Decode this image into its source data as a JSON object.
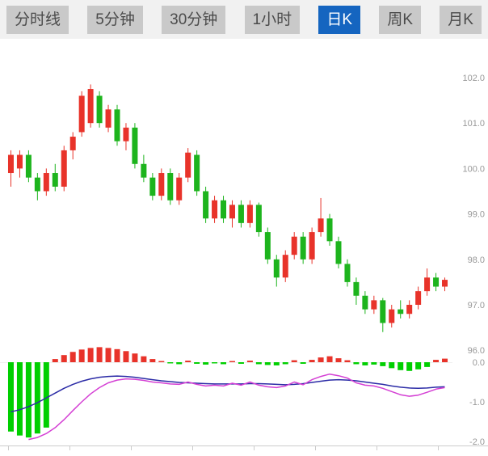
{
  "tabs": [
    {
      "label": "分时线",
      "active": false
    },
    {
      "label": "5分钟",
      "active": false
    },
    {
      "label": "30分钟",
      "active": false
    },
    {
      "label": "1小时",
      "active": false
    },
    {
      "label": "日K",
      "active": true
    },
    {
      "label": "周K",
      "active": false
    },
    {
      "label": "月K",
      "active": false
    }
  ],
  "colors": {
    "up": "#e8332a",
    "down": "#1db41d",
    "hist_up": "#e8332a",
    "hist_down": "#00cf00",
    "dif_line": "#d43fd4",
    "dea_line": "#2b2ba6",
    "axis_text": "#999999",
    "tab_active_bg": "#1565c0",
    "tab_bg": "#c9c9c9",
    "baseline": "#cccccc"
  },
  "chart_data": {
    "type": "candlestick",
    "title": "",
    "price_axis": {
      "ticks": [
        102.0,
        101.0,
        100.0,
        99.0,
        98.0,
        97.0,
        96.0
      ],
      "labels": [
        "102.0",
        "101.0",
        "100.0",
        "99.0",
        "98.0",
        "97.0",
        "96.0"
      ],
      "range": [
        96.0,
        102.0
      ]
    },
    "macd_axis": {
      "ticks": [
        0.0,
        -1.0,
        -2.0
      ],
      "labels": [
        "0.0",
        "-1.0",
        "-2.0"
      ],
      "range": [
        -2.0,
        0.5
      ]
    },
    "candles": [
      [
        99.9,
        100.4,
        99.6,
        100.3
      ],
      [
        100.0,
        100.4,
        99.8,
        100.3
      ],
      [
        100.3,
        100.4,
        99.7,
        99.8
      ],
      [
        99.8,
        99.9,
        99.3,
        99.5
      ],
      [
        99.5,
        100.0,
        99.4,
        99.9
      ],
      [
        99.9,
        100.1,
        99.5,
        99.6
      ],
      [
        99.6,
        100.5,
        99.5,
        100.4
      ],
      [
        100.4,
        100.8,
        100.2,
        100.7
      ],
      [
        100.8,
        101.7,
        100.7,
        101.6
      ],
      [
        101.0,
        101.85,
        100.9,
        101.75
      ],
      [
        101.6,
        101.7,
        100.9,
        101.0
      ],
      [
        100.9,
        101.4,
        100.8,
        101.3
      ],
      [
        101.3,
        101.4,
        100.5,
        100.6
      ],
      [
        100.6,
        101.0,
        100.4,
        100.9
      ],
      [
        100.9,
        101.0,
        100.0,
        100.1
      ],
      [
        100.1,
        100.3,
        99.7,
        99.8
      ],
      [
        99.8,
        99.9,
        99.3,
        99.4
      ],
      [
        99.4,
        100.0,
        99.3,
        99.9
      ],
      [
        99.9,
        100.0,
        99.2,
        99.3
      ],
      [
        99.3,
        99.9,
        99.2,
        99.8
      ],
      [
        99.8,
        100.45,
        99.7,
        100.35
      ],
      [
        100.3,
        100.4,
        99.4,
        99.5
      ],
      [
        99.5,
        99.6,
        98.8,
        98.9
      ],
      [
        98.9,
        99.4,
        98.8,
        99.3
      ],
      [
        99.3,
        99.4,
        98.8,
        98.9
      ],
      [
        98.9,
        99.3,
        98.7,
        99.2
      ],
      [
        99.2,
        99.3,
        98.7,
        98.8
      ],
      [
        98.8,
        99.3,
        98.7,
        99.2
      ],
      [
        99.2,
        99.25,
        98.5,
        98.6
      ],
      [
        98.6,
        98.7,
        97.9,
        98.0
      ],
      [
        98.0,
        98.1,
        97.4,
        97.6
      ],
      [
        97.6,
        98.2,
        97.5,
        98.1
      ],
      [
        98.1,
        98.6,
        98.0,
        98.5
      ],
      [
        98.5,
        98.6,
        97.9,
        98.0
      ],
      [
        98.0,
        98.7,
        97.9,
        98.6
      ],
      [
        98.6,
        99.35,
        98.5,
        98.9
      ],
      [
        98.9,
        99.0,
        98.3,
        98.4
      ],
      [
        98.4,
        98.5,
        97.8,
        97.9
      ],
      [
        97.9,
        98.0,
        97.4,
        97.5
      ],
      [
        97.5,
        97.6,
        97.0,
        97.2
      ],
      [
        97.2,
        97.3,
        96.8,
        96.9
      ],
      [
        96.9,
        97.2,
        96.8,
        97.1
      ],
      [
        97.1,
        97.15,
        96.4,
        96.6
      ],
      [
        96.6,
        97.0,
        96.5,
        96.9
      ],
      [
        96.9,
        97.1,
        96.7,
        96.8
      ],
      [
        96.8,
        97.1,
        96.7,
        97.0
      ],
      [
        97.0,
        97.4,
        96.9,
        97.3
      ],
      [
        97.3,
        97.8,
        97.2,
        97.6
      ],
      [
        97.6,
        97.7,
        97.3,
        97.4
      ],
      [
        97.4,
        97.6,
        97.3,
        97.55
      ]
    ],
    "macd": {
      "histogram": [
        -1.75,
        -1.85,
        -1.9,
        -1.8,
        -1.65,
        0.08,
        0.18,
        0.26,
        0.32,
        0.36,
        0.38,
        0.36,
        0.33,
        0.28,
        0.22,
        0.15,
        0.08,
        0.03,
        -0.03,
        -0.05,
        0.04,
        -0.04,
        -0.06,
        -0.03,
        -0.05,
        0.03,
        -0.04,
        0.04,
        -0.05,
        -0.07,
        -0.08,
        -0.05,
        0.05,
        -0.04,
        0.06,
        0.12,
        0.15,
        0.1,
        0.05,
        -0.05,
        -0.08,
        -0.06,
        -0.1,
        -0.15,
        -0.2,
        -0.22,
        -0.18,
        -0.12,
        0.06,
        0.09
      ],
      "dea": [
        -1.25,
        -1.2,
        -1.12,
        -1.02,
        -0.9,
        -0.78,
        -0.66,
        -0.56,
        -0.48,
        -0.42,
        -0.38,
        -0.36,
        -0.35,
        -0.36,
        -0.38,
        -0.41,
        -0.44,
        -0.47,
        -0.49,
        -0.51,
        -0.52,
        -0.53,
        -0.54,
        -0.55,
        -0.55,
        -0.55,
        -0.55,
        -0.54,
        -0.54,
        -0.55,
        -0.56,
        -0.57,
        -0.56,
        -0.54,
        -0.51,
        -0.48,
        -0.45,
        -0.44,
        -0.45,
        -0.47,
        -0.5,
        -0.53,
        -0.56,
        -0.6,
        -0.63,
        -0.65,
        -0.66,
        -0.65,
        -0.63,
        -0.62
      ],
      "dif": [
        null,
        null,
        -1.95,
        -1.9,
        -1.8,
        -1.65,
        -1.45,
        -1.22,
        -1.0,
        -0.8,
        -0.64,
        -0.52,
        -0.45,
        -0.42,
        -0.43,
        -0.46,
        -0.5,
        -0.52,
        -0.55,
        -0.56,
        -0.5,
        -0.56,
        -0.6,
        -0.58,
        -0.6,
        -0.53,
        -0.58,
        -0.5,
        -0.58,
        -0.62,
        -0.64,
        -0.6,
        -0.5,
        -0.57,
        -0.44,
        -0.36,
        -0.3,
        -0.34,
        -0.4,
        -0.52,
        -0.58,
        -0.6,
        -0.66,
        -0.74,
        -0.82,
        -0.86,
        -0.83,
        -0.76,
        -0.68,
        -0.64
      ]
    }
  }
}
